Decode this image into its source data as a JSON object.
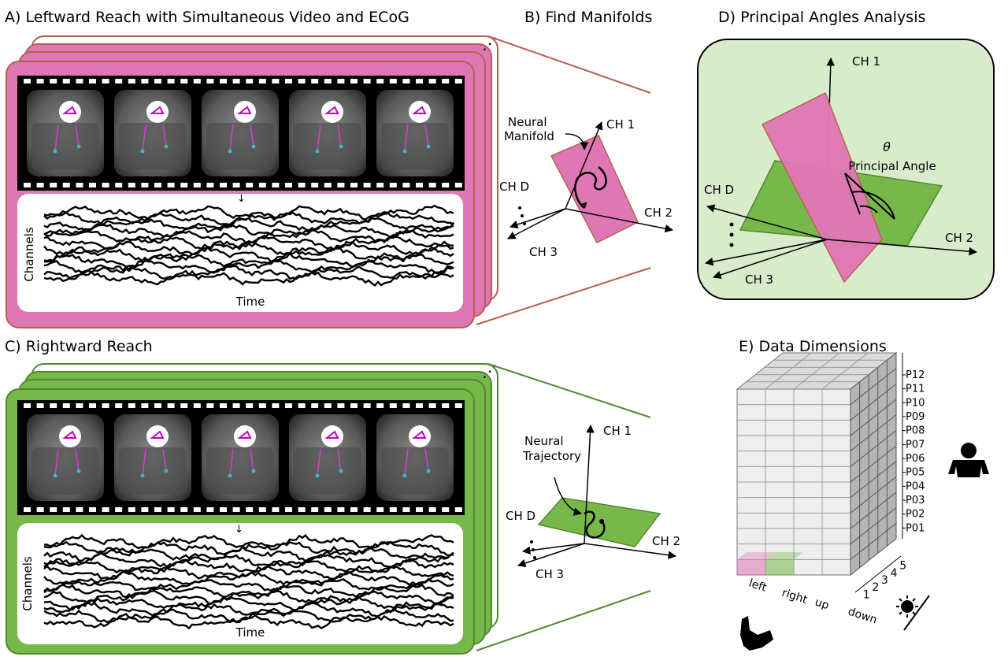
{
  "panels": {
    "a": {
      "title": "A) Leftward Reach with Simultaneous Video and ECoG",
      "ylabel": "Channels",
      "xlabel": "Time"
    },
    "b": {
      "title": "B) Find Manifolds",
      "annotation_line1": "Neural",
      "annotation_line2": "Manifold",
      "axis_ch1": "CH 1",
      "axis_ch2": "CH 2",
      "axis_ch3": "CH 3",
      "axis_chd": "CH D"
    },
    "c": {
      "title": "C) Rightward Reach",
      "ylabel": "Channels",
      "xlabel": "Time",
      "annotation_line1": "Neural",
      "annotation_line2": "Trajectory",
      "axis_ch1": "CH 1",
      "axis_ch2": "CH 2",
      "axis_ch3": "CH 3",
      "axis_chd": "CH D"
    },
    "d": {
      "title": "D) Principal Angles Analysis",
      "theta": "θ",
      "angle_label": "Principal Angle",
      "axis_ch1": "CH 1",
      "axis_ch2": "CH 2",
      "axis_ch3": "CH 3",
      "axis_chd": "CH D"
    },
    "e": {
      "title": "E) Data Dimensions",
      "movements": [
        "left",
        "right",
        "up",
        "down"
      ],
      "days": [
        "1",
        "2",
        "3",
        "4",
        "5"
      ],
      "participants": [
        "P12",
        "P11",
        "P10",
        "P09",
        "P08",
        "P07",
        "P06",
        "P05",
        "P04",
        "P03",
        "P02",
        "P01"
      ]
    }
  },
  "icons": [
    "person-icon",
    "sun-icon",
    "moon-icon",
    "arm-icon",
    "film-strip-icon"
  ],
  "colors": {
    "pink": "#e077b5",
    "green": "#78b84a",
    "pink_border": "#b5604e",
    "green_border": "#4f8a2e",
    "light_green": "#d8eccc",
    "grid_gray": "#d0d0d0"
  }
}
